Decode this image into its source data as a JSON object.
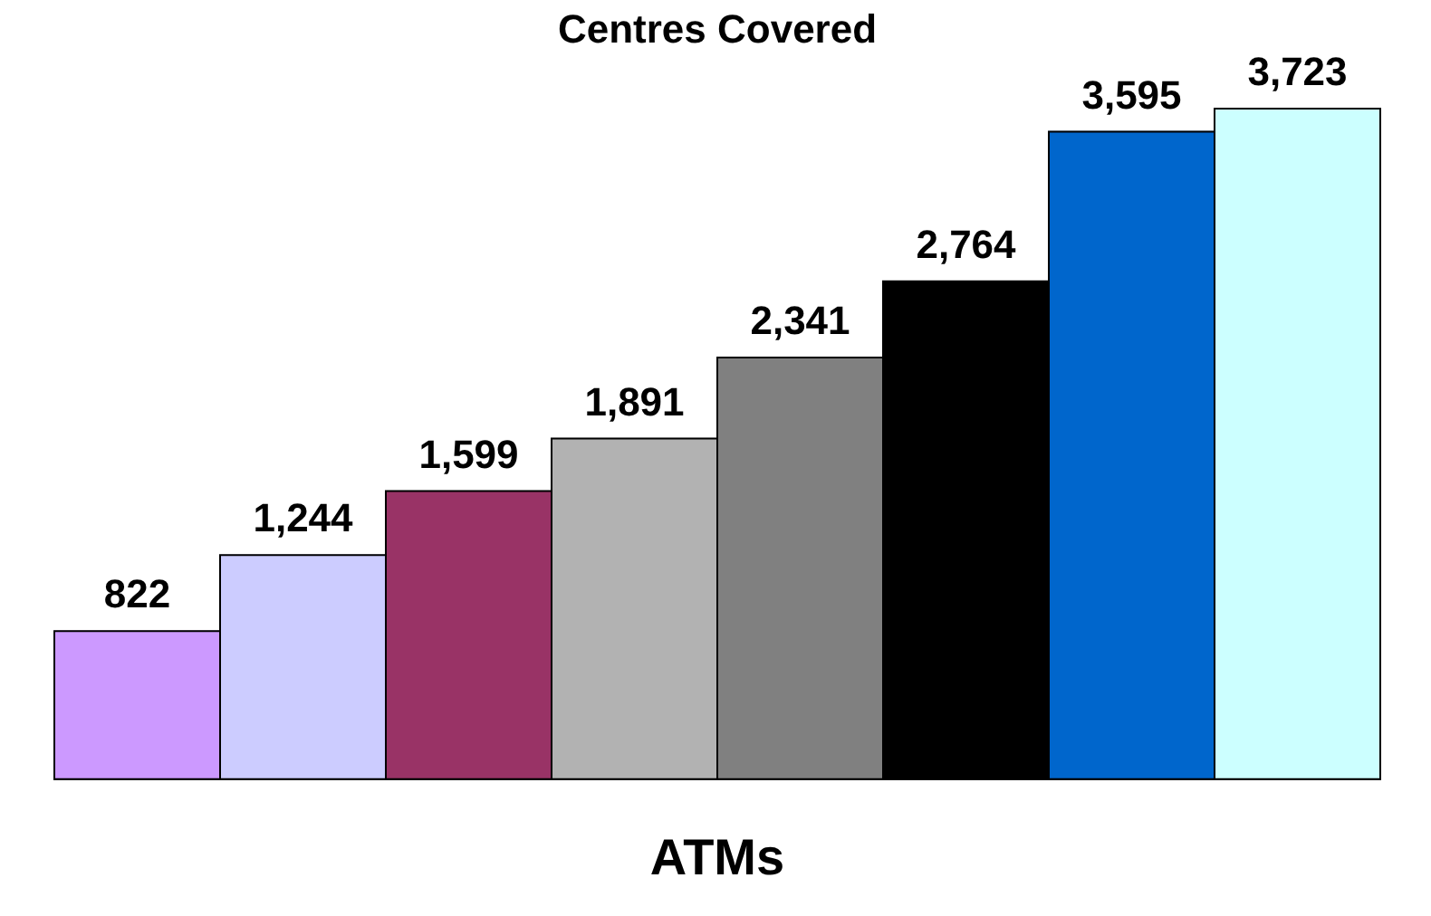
{
  "chart_data": {
    "type": "bar",
    "title": "Centres Covered",
    "xlabel": "ATMs",
    "categories": [
      null,
      null,
      null,
      null,
      null,
      null,
      null,
      null
    ],
    "values": [
      822,
      1244,
      1599,
      1891,
      2341,
      2764,
      3595,
      3723
    ],
    "colors": [
      "#cc99ff",
      "#ccccff",
      "#993366",
      "#b2b2b2",
      "#808080",
      "#000000",
      "#0066cc",
      "#ccffff"
    ],
    "value_labels": [
      "822",
      "1,244",
      "1,599",
      "1,891",
      "2,341",
      "2,764",
      "3,595",
      "3,723"
    ]
  }
}
